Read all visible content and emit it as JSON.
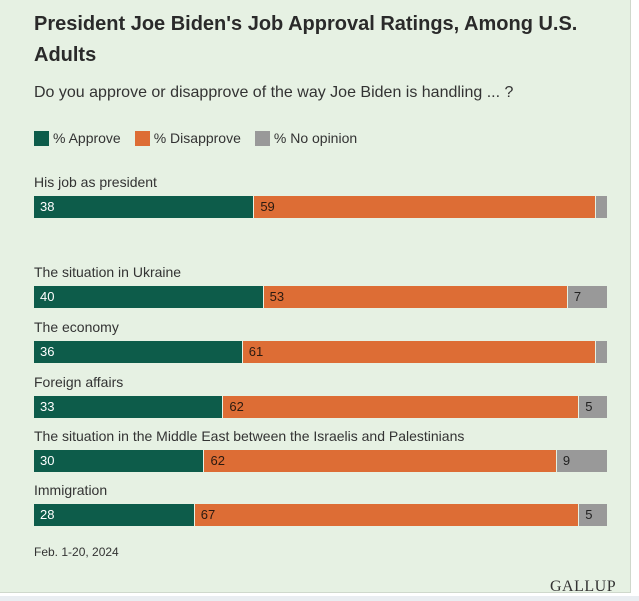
{
  "chart_data": {
    "type": "bar",
    "stacked": true,
    "orientation": "horizontal",
    "title": "President Joe Biden's Job Approval Ratings, Among U.S. Adults",
    "subtitle": "Do you approve or disapprove of the way Joe Biden is handling ... ?",
    "categories": [
      "His job as president",
      "The situation in Ukraine",
      "The economy",
      "Foreign affairs",
      "The situation in the Middle East between the Israelis and Palestinians",
      "Immigration"
    ],
    "series": [
      {
        "name": "% Approve",
        "color": "#0d5c4a",
        "values": [
          38,
          40,
          36,
          33,
          30,
          28
        ],
        "labels": [
          "38",
          "40",
          "36",
          "33",
          "30",
          "28"
        ]
      },
      {
        "name": "% Disapprove",
        "color": "#dd6d35",
        "values": [
          59,
          53,
          61,
          62,
          62,
          67
        ],
        "labels": [
          "59",
          "53",
          "61",
          "62",
          "62",
          "67"
        ]
      },
      {
        "name": "% No opinion",
        "color": "#999999",
        "values": [
          2,
          7,
          2,
          5,
          9,
          5
        ],
        "labels": [
          "",
          "7",
          "",
          "5",
          "9",
          "5"
        ]
      }
    ],
    "xlim": [
      0,
      100
    ],
    "legend": "top-left",
    "footnote": "Feb. 1-20, 2024"
  },
  "brand": {
    "logo_text": "GALLUP"
  }
}
